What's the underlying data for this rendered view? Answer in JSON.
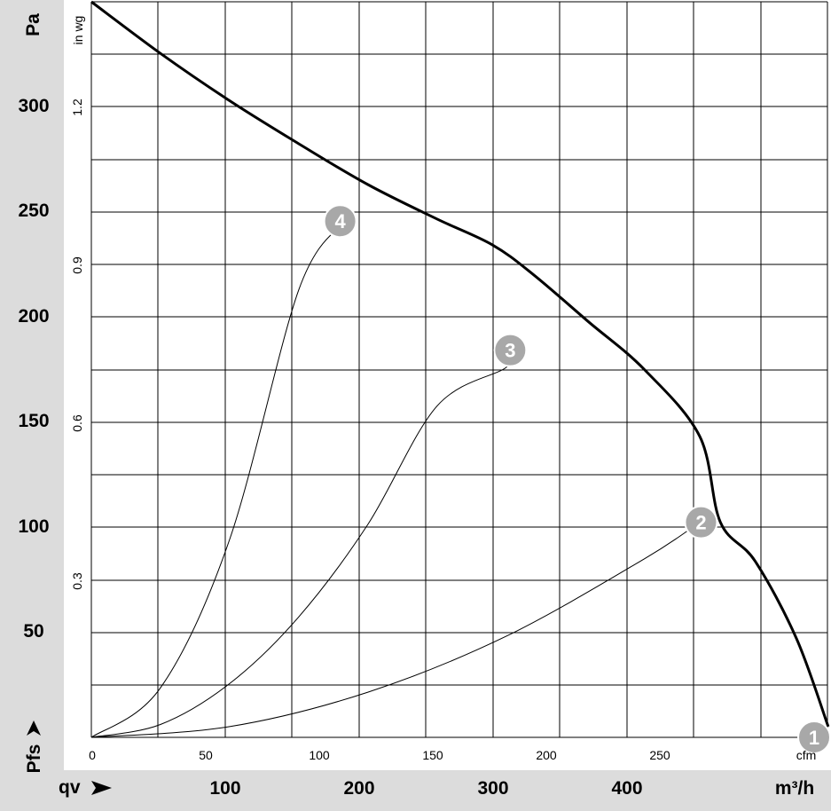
{
  "chart_data": {
    "type": "line",
    "title": "",
    "units": {
      "y_primary": "Pa",
      "y_secondary": "in wg",
      "x_primary": "m³/h",
      "x_secondary": "cfm"
    },
    "axis_symbols": {
      "y": "Pfs",
      "x": "qv"
    },
    "y_ticks_pa": [
      "50",
      "100",
      "150",
      "200",
      "250",
      "300"
    ],
    "y_ticks_inwg": [
      "0.3",
      "0.6",
      "0.9",
      "1.2"
    ],
    "x_ticks_m3h": [
      "100",
      "200",
      "300",
      "400"
    ],
    "x_ticks_cfm": [
      "0",
      "50",
      "100",
      "150",
      "200",
      "250"
    ],
    "ylim_pa": [
      0,
      342
    ],
    "xlim_m3h": [
      0,
      535
    ],
    "grid": true,
    "series": [
      {
        "kind": "fan-curve",
        "x": [
          0,
          50,
          100,
          150,
          200,
          250,
          290,
          320,
          360,
          400,
          440,
          455,
          480,
          510,
          533
        ],
        "y": [
          342,
          318,
          296,
          276,
          257,
          241,
          229,
          215,
          193,
          171,
          140,
          100,
          82,
          46,
          5
        ]
      },
      {
        "kind": "system-curve",
        "x": [
          0,
          50,
          100,
          150,
          183
        ],
        "y": [
          0,
          23,
          92,
          208,
          240
        ]
      },
      {
        "kind": "system-curve",
        "x": [
          0,
          50,
          100,
          150,
          200,
          250,
          300,
          303
        ],
        "y": [
          0,
          6,
          25,
          56,
          99,
          154,
          172,
          180
        ]
      },
      {
        "kind": "system-curve",
        "x": [
          0,
          100,
          200,
          300,
          400,
          440
        ],
        "y": [
          0,
          5,
          21,
          47,
          83,
          100
        ]
      }
    ],
    "operating_points": [
      {
        "label": "1",
        "x": 535,
        "y": 0
      },
      {
        "label": "2",
        "x": 441,
        "y": 100
      },
      {
        "label": "3",
        "x": 303,
        "y": 180
      },
      {
        "label": "4",
        "x": 180,
        "y": 240
      }
    ]
  }
}
